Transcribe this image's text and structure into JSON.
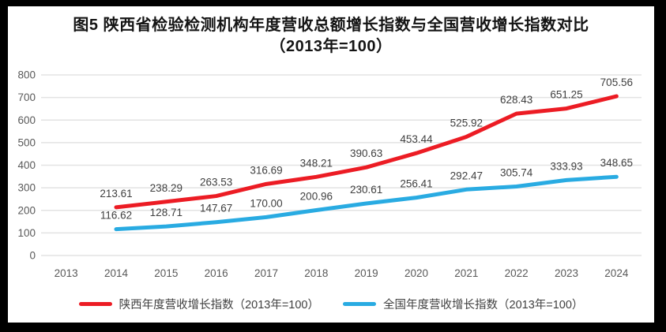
{
  "page": {
    "background_color": "#000000",
    "chart_background_color": "#ffffff"
  },
  "title": {
    "line1": "图5  陕西省检验检测机构年度营收总额增长指数与全国营收增长指数对比",
    "line2": "（2013年=100）"
  },
  "chart_data": {
    "type": "line",
    "title": "图5 陕西省检验检测机构年度营收总额增长指数与全国营收增长指数对比（2013年=100）",
    "categories": [
      "2013",
      "2014",
      "2015",
      "2016",
      "2017",
      "2018",
      "2019",
      "2020",
      "2021",
      "2022",
      "2023",
      "2024"
    ],
    "series": [
      {
        "name": "陕西年度营收增长指数（2013年=100）",
        "color": "#EC1C24",
        "values": [
          null,
          213.61,
          238.29,
          263.53,
          316.69,
          348.21,
          390.63,
          453.44,
          525.92,
          628.43,
          651.25,
          705.56
        ]
      },
      {
        "name": "全国年度营收增长指数（2013年=100）",
        "color": "#29ABE2",
        "values": [
          null,
          116.62,
          128.71,
          147.67,
          170.0,
          200.96,
          230.61,
          256.41,
          292.47,
          305.74,
          333.93,
          348.65
        ]
      }
    ],
    "xlabel": "",
    "ylabel": "",
    "ylim": [
      0,
      800
    ],
    "ytick_step": 100,
    "grid": true,
    "legend_position": "bottom",
    "data_labels": true,
    "label_decimals": 2,
    "styles": {
      "gridline_color": "#E3E3E3",
      "axis_text_color": "#595959",
      "data_label_color": "#3F3F3F",
      "line_width": 5
    }
  }
}
